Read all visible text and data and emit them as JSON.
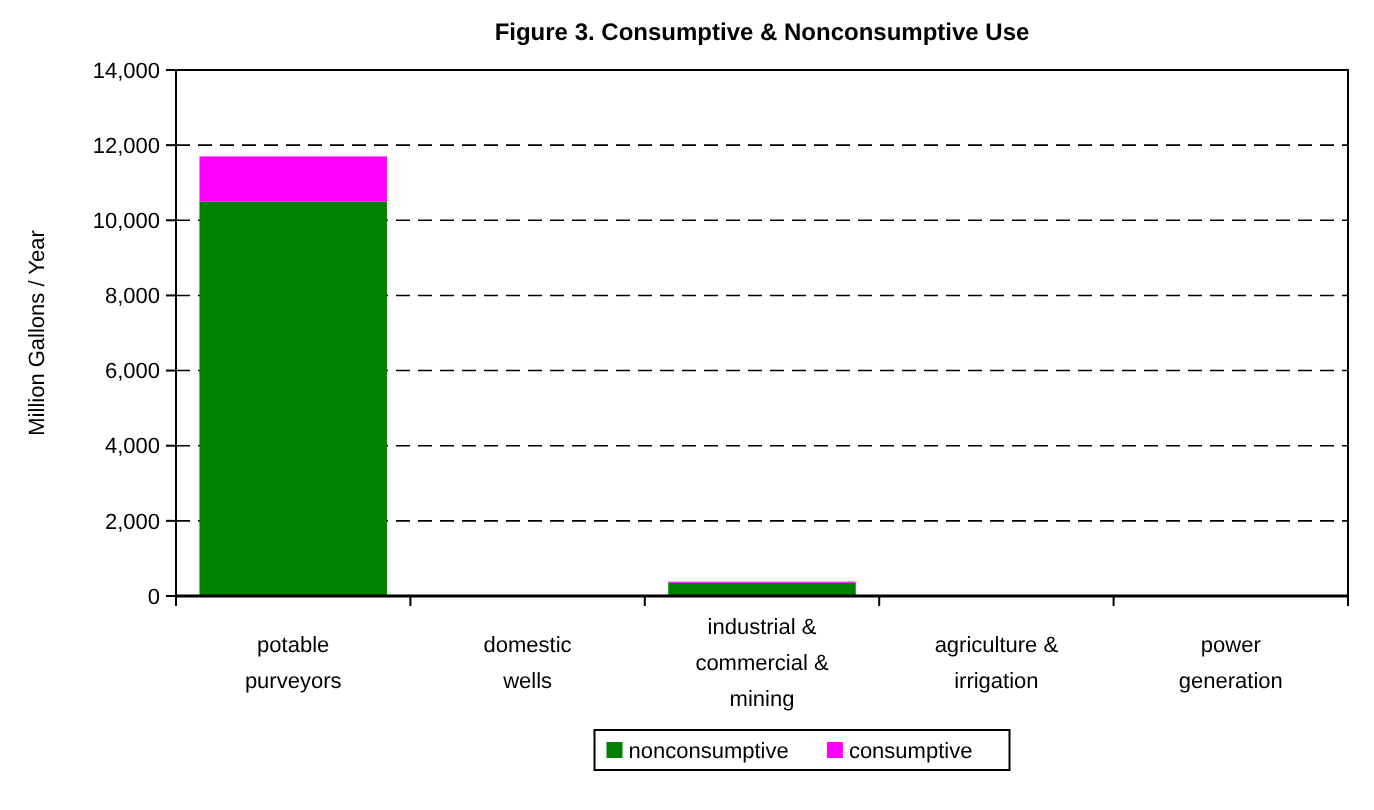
{
  "chart_data": {
    "type": "bar",
    "title": "Figure 3. Consumptive & Nonconsumptive Use",
    "ylabel": "Million Gallons / Year",
    "categories": [
      "potable purveyors",
      "domestic wells",
      "industrial & commercial & mining",
      "agriculture & irrigation",
      "power generation"
    ],
    "stacked": true,
    "series": [
      {
        "name": "nonconsumptive",
        "color": "#008000",
        "values": [
          10500,
          0,
          350,
          10,
          0
        ]
      },
      {
        "name": "consumptive",
        "color": "#ff00ff",
        "values": [
          1200,
          0,
          30,
          10,
          0
        ]
      }
    ],
    "ylim": [
      0,
      14000
    ],
    "yticks": [
      {
        "value": 0,
        "label": "0"
      },
      {
        "value": 2000,
        "label": "2,000"
      },
      {
        "value": 4000,
        "label": "4,000"
      },
      {
        "value": 6000,
        "label": "6,000"
      },
      {
        "value": 8000,
        "label": "8,000"
      },
      {
        "value": 10000,
        "label": "10,000"
      },
      {
        "value": 12000,
        "label": "12,000"
      },
      {
        "value": 14000,
        "label": "14,000"
      }
    ],
    "grid": "y",
    "legend": "bottom"
  }
}
